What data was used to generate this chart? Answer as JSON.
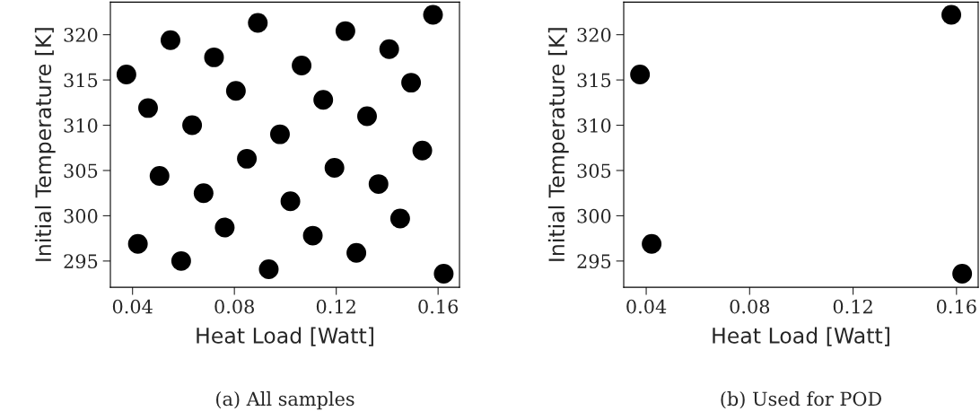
{
  "chart_data": [
    {
      "type": "scatter",
      "xlabel": "Heat Load [Watt]",
      "ylabel": "Initial Temperature [K]",
      "annotations": [
        "(a) All samples"
      ],
      "series": [
        {
          "color": "#000000",
          "x": [
            0.0376,
            0.0461,
            0.0506,
            0.0421,
            0.0549,
            0.0634,
            0.0591,
            0.0679,
            0.072,
            0.0762,
            0.0806,
            0.0849,
            0.0892,
            0.0935,
            0.0979,
            0.102,
            0.1064,
            0.1108,
            0.1149,
            0.1193,
            0.1236,
            0.1279,
            0.1321,
            0.1366,
            0.1408,
            0.1451,
            0.1494,
            0.1538,
            0.158,
            0.1622
          ],
          "values": [
            315.6,
            311.9,
            304.4,
            296.9,
            319.4,
            310.0,
            295.0,
            302.5,
            317.5,
            298.7,
            313.8,
            306.3,
            321.3,
            294.1,
            309.0,
            301.6,
            316.6,
            297.8,
            312.8,
            305.3,
            320.4,
            295.9,
            311.0,
            303.5,
            318.4,
            299.7,
            314.7,
            307.2,
            322.2,
            293.6
          ]
        }
      ],
      "xlim": [
        0.0313,
        0.1684
      ],
      "xticks": [
        {
          "value": 0.04,
          "label": "0.04"
        },
        {
          "value": 0.08,
          "label": "0.08"
        },
        {
          "value": 0.12,
          "label": "0.12"
        },
        {
          "value": 0.16,
          "label": "0.16"
        }
      ],
      "ylim": [
        292.1,
        323.6
      ],
      "yticks": [
        295,
        300,
        305,
        310,
        315,
        320
      ],
      "grid": false,
      "marker": "circle"
    },
    {
      "type": "scatter",
      "xlabel": "Heat Load [Watt]",
      "ylabel": "Initial Temperature [K]",
      "annotations": [
        "(b) Used for POD"
      ],
      "series": [
        {
          "color": "#000000",
          "x": [
            0.0376,
            0.0421,
            0.158,
            0.1622
          ],
          "values": [
            315.6,
            296.9,
            322.2,
            293.6
          ]
        }
      ],
      "xlim": [
        0.0313,
        0.1684
      ],
      "xticks": [
        {
          "value": 0.04,
          "label": "0.04"
        },
        {
          "value": 0.08,
          "label": "0.08"
        },
        {
          "value": 0.12,
          "label": "0.12"
        },
        {
          "value": 0.16,
          "label": "0.16"
        }
      ],
      "ylim": [
        292.1,
        323.6
      ],
      "yticks": [
        295,
        300,
        305,
        310,
        315,
        320
      ],
      "grid": false,
      "marker": "circle"
    }
  ]
}
